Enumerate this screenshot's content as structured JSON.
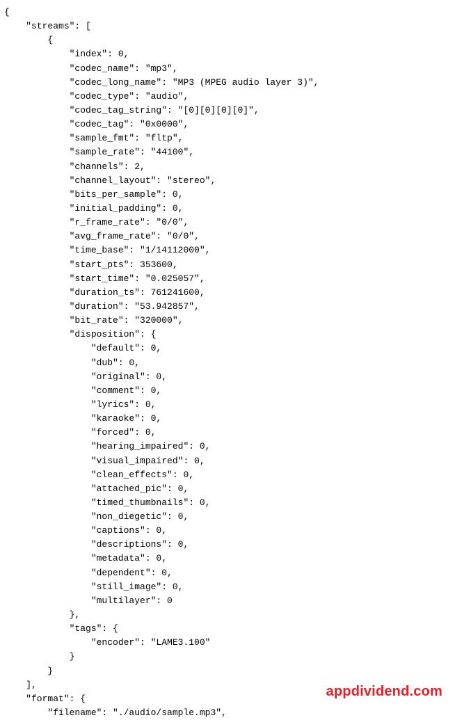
{
  "watermark": "appdividend.com",
  "json_text": {
    "lines": [
      "{",
      "    \"streams\": [",
      "        {",
      "            \"index\": 0,",
      "            \"codec_name\": \"mp3\",",
      "            \"codec_long_name\": \"MP3 (MPEG audio layer 3)\",",
      "            \"codec_type\": \"audio\",",
      "            \"codec_tag_string\": \"[0][0][0][0]\",",
      "            \"codec_tag\": \"0x0000\",",
      "            \"sample_fmt\": \"fltp\",",
      "            \"sample_rate\": \"44100\",",
      "            \"channels\": 2,",
      "            \"channel_layout\": \"stereo\",",
      "            \"bits_per_sample\": 0,",
      "            \"initial_padding\": 0,",
      "            \"r_frame_rate\": \"0/0\",",
      "            \"avg_frame_rate\": \"0/0\",",
      "            \"time_base\": \"1/14112000\",",
      "            \"start_pts\": 353600,",
      "            \"start_time\": \"0.025057\",",
      "            \"duration_ts\": 761241600,",
      "            \"duration\": \"53.942857\",",
      "            \"bit_rate\": \"320000\",",
      "            \"disposition\": {",
      "                \"default\": 0,",
      "                \"dub\": 0,",
      "                \"original\": 0,",
      "                \"comment\": 0,",
      "                \"lyrics\": 0,",
      "                \"karaoke\": 0,",
      "                \"forced\": 0,",
      "                \"hearing_impaired\": 0,",
      "                \"visual_impaired\": 0,",
      "                \"clean_effects\": 0,",
      "                \"attached_pic\": 0,",
      "                \"timed_thumbnails\": 0,",
      "                \"non_diegetic\": 0,",
      "                \"captions\": 0,",
      "                \"descriptions\": 0,",
      "                \"metadata\": 0,",
      "                \"dependent\": 0,",
      "                \"still_image\": 0,",
      "                \"multilayer\": 0",
      "            },",
      "            \"tags\": {",
      "                \"encoder\": \"LAME3.100\"",
      "            }",
      "        }",
      "    ],",
      "    \"format\": {",
      "        \"filename\": \"./audio/sample.mp3\","
    ]
  }
}
